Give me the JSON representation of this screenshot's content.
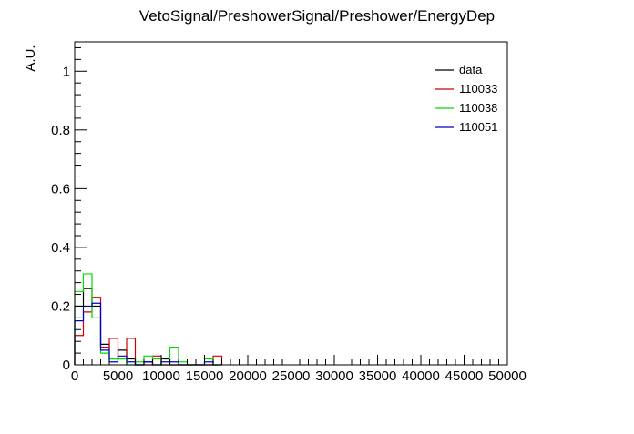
{
  "chart_data": {
    "type": "histogram",
    "title": "VetoSignal/PreshowerSignal/Preshower/EnergyDep",
    "xlabel": "",
    "ylabel": "A.U.",
    "xlim": [
      0,
      50000
    ],
    "ylim": [
      0,
      1.1
    ],
    "grid": false,
    "legend_position": "top-right",
    "bin_width": 1000,
    "x_ticks": [
      0,
      5000,
      10000,
      15000,
      20000,
      25000,
      30000,
      35000,
      40000,
      45000,
      50000
    ],
    "x_tick_labels": [
      "0",
      "5000",
      "10000",
      "15000",
      "20000",
      "25000",
      "30000",
      "35000",
      "40000",
      "45000",
      "50000"
    ],
    "y_ticks": [
      0,
      0.2,
      0.4,
      0.6,
      0.8,
      1
    ],
    "y_tick_labels": [
      "0",
      "0.2",
      "0.4",
      "0.6",
      "0.8",
      "1"
    ],
    "series": [
      {
        "name": "data",
        "color": "#000000",
        "values": [
          0.2,
          0.26,
          0.2,
          0.07,
          0.02,
          0.05,
          0.02,
          0.0,
          0.01,
          0.0,
          0.02,
          0.0,
          0.0,
          0.0,
          0.0,
          0.0,
          0.0
        ]
      },
      {
        "name": "110033",
        "color": "#cc0000",
        "values": [
          0.1,
          0.18,
          0.23,
          0.06,
          0.09,
          0.02,
          0.09,
          0.0,
          0.0,
          0.03,
          0.0,
          0.0,
          0.0,
          0.0,
          0.0,
          0.0,
          0.03
        ]
      },
      {
        "name": "110038",
        "color": "#00dd00",
        "values": [
          0.25,
          0.31,
          0.16,
          0.04,
          0.02,
          0.02,
          0.0,
          0.01,
          0.03,
          0.02,
          0.0,
          0.06,
          0.01,
          0.0,
          0.0,
          0.02,
          0.0
        ]
      },
      {
        "name": "110051",
        "color": "#0000cc",
        "values": [
          0.15,
          0.2,
          0.21,
          0.05,
          0.01,
          0.03,
          0.01,
          0.0,
          0.01,
          0.0,
          0.01,
          0.01,
          0.0,
          0.0,
          0.0,
          0.01,
          0.0
        ]
      }
    ]
  }
}
